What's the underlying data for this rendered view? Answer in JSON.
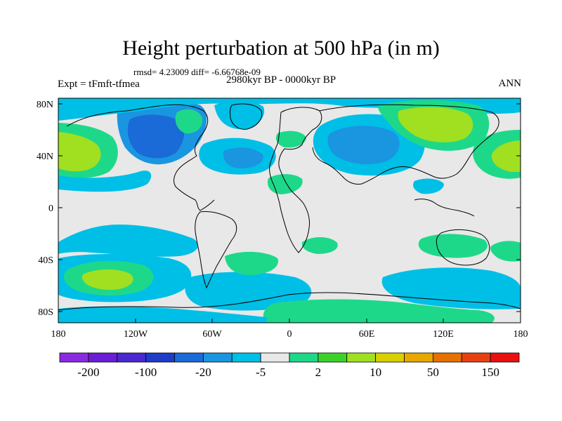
{
  "title": "Height perturbation at 500 hPa (in m)",
  "stats": "rmsd= 4.23009 diff= -6.66768e-09",
  "experiment": "Expt = tFmft-tfmea",
  "period": "2980kyr BP - 0000kyr BP",
  "season": "ANN",
  "lat_labels": [
    "80N",
    "40N",
    "0",
    "40S",
    "80S"
  ],
  "lon_labels": [
    "180",
    "120W",
    "60W",
    "0",
    "60E",
    "120E",
    "180"
  ],
  "colorbar": {
    "colors": [
      "#8a2be2",
      "#6a1fd6",
      "#4a28d0",
      "#1e3cc8",
      "#1a6ad8",
      "#1a95e0",
      "#00bfe6",
      "#e8e8e8",
      "#1ed88a",
      "#3cd22a",
      "#a0e020",
      "#d8d000",
      "#e8a800",
      "#e87000",
      "#e84010",
      "#e81010"
    ],
    "labels": [
      "-200",
      "-100",
      "-20",
      "-5",
      "2",
      "10",
      "50",
      "150"
    ]
  }
}
